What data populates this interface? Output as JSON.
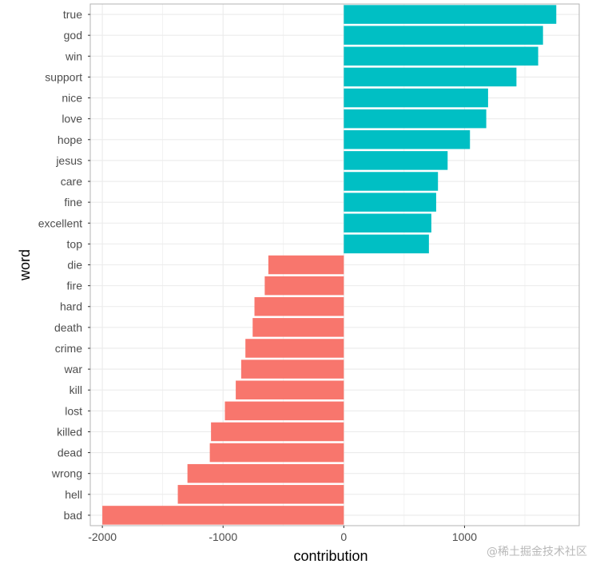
{
  "chart_data": {
    "type": "bar",
    "orientation": "horizontal",
    "xlabel": "contribution",
    "ylabel": "word",
    "xlim": [
      -2100,
      1950
    ],
    "xticks": [
      -2000,
      -1000,
      0,
      1000
    ],
    "xtick_labels": [
      "-2000",
      "-1000",
      "0",
      "1000"
    ],
    "grid": true,
    "colors": {
      "positive": "#00BFC4",
      "negative": "#F8766D",
      "panel_border": "#b3b3b3",
      "grid": "#ebebeb"
    },
    "bars": [
      {
        "word": "true",
        "value": 1760
      },
      {
        "word": "god",
        "value": 1650
      },
      {
        "word": "win",
        "value": 1610
      },
      {
        "word": "support",
        "value": 1430
      },
      {
        "word": "nice",
        "value": 1195
      },
      {
        "word": "love",
        "value": 1180
      },
      {
        "word": "hope",
        "value": 1045
      },
      {
        "word": "jesus",
        "value": 860
      },
      {
        "word": "care",
        "value": 780
      },
      {
        "word": "fine",
        "value": 765
      },
      {
        "word": "excellent",
        "value": 725
      },
      {
        "word": "top",
        "value": 705
      },
      {
        "word": "die",
        "value": -625
      },
      {
        "word": "fire",
        "value": -655
      },
      {
        "word": "hard",
        "value": -740
      },
      {
        "word": "death",
        "value": -755
      },
      {
        "word": "crime",
        "value": -815
      },
      {
        "word": "war",
        "value": -850
      },
      {
        "word": "kill",
        "value": -895
      },
      {
        "word": "lost",
        "value": -985
      },
      {
        "word": "killed",
        "value": -1100
      },
      {
        "word": "dead",
        "value": -1110
      },
      {
        "word": "wrong",
        "value": -1295
      },
      {
        "word": "hell",
        "value": -1375
      },
      {
        "word": "bad",
        "value": -2000
      }
    ]
  },
  "watermark": "@稀土掘金技术社区"
}
